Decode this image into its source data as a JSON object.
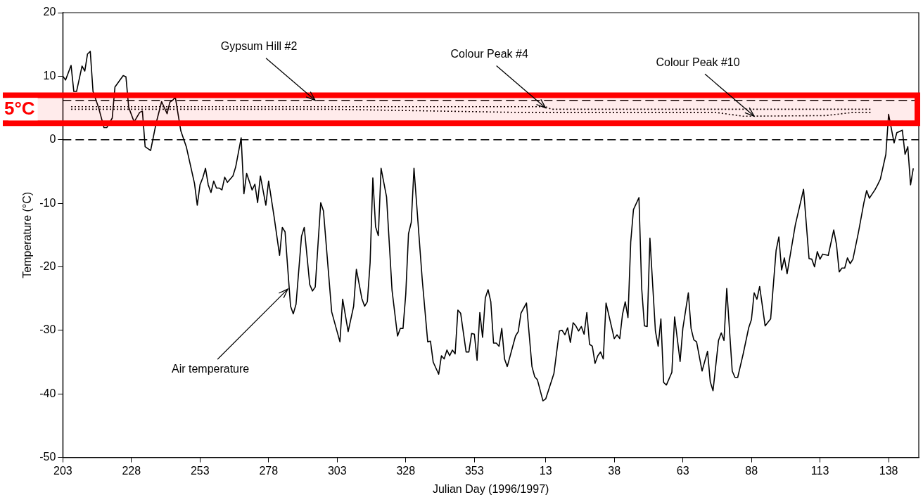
{
  "chart_data": {
    "type": "line",
    "xlabel": "Julian Day (1996/1997)",
    "ylabel": "Temperature (°C)",
    "xlim": [
      "1996-07-21",
      "1997-05-29"
    ],
    "xticks": [
      {
        "value": "1996-07-21",
        "label": "203"
      },
      {
        "value": "1996-08-15",
        "label": "228"
      },
      {
        "value": "1996-09-09",
        "label": "253"
      },
      {
        "value": "1996-10-04",
        "label": "278"
      },
      {
        "value": "1996-10-29",
        "label": "303"
      },
      {
        "value": "1996-11-23",
        "label": "328"
      },
      {
        "value": "1996-12-18",
        "label": "353"
      },
      {
        "value": "1997-01-13",
        "label": "13"
      },
      {
        "value": "1997-02-07",
        "label": "38"
      },
      {
        "value": "1997-03-04",
        "label": "63"
      },
      {
        "value": "1997-03-29",
        "label": "88"
      },
      {
        "value": "1997-04-23",
        "label": "113"
      },
      {
        "value": "1997-05-18",
        "label": "138"
      }
    ],
    "ylim": [
      -50,
      20
    ],
    "yticks": [
      -50,
      -40,
      -30,
      -20,
      -10,
      0,
      10,
      20
    ],
    "grid": false,
    "legend": false,
    "marker": "none",
    "series": [
      {
        "color": "#000000",
        "line_style": "solid",
        "x": [
          "1996-07-21",
          "1996-07-22",
          "1996-07-24",
          "1996-07-25",
          "1996-07-26",
          "1996-07-28",
          "1996-07-29",
          "1996-07-30",
          "1996-07-31",
          "1996-08-01",
          "1996-08-03",
          "1996-08-05",
          "1996-08-06",
          "1996-08-08",
          "1996-08-09",
          "1996-08-12",
          "1996-08-13",
          "1996-08-14",
          "1996-08-16",
          "1996-08-18",
          "1996-08-19",
          "1996-08-20",
          "1996-08-22",
          "1996-08-24",
          "1996-08-26",
          "1996-08-28",
          "1996-08-29",
          "1996-08-30",
          "1996-08-31",
          "1996-09-02",
          "1996-09-04",
          "1996-09-07",
          "1996-09-08",
          "1996-09-09",
          "1996-09-10",
          "1996-09-11",
          "1996-09-12",
          "1996-09-13",
          "1996-09-14",
          "1996-09-15",
          "1996-09-16",
          "1996-09-17",
          "1996-09-18",
          "1996-09-19",
          "1996-09-21",
          "1996-09-22",
          "1996-09-24",
          "1996-09-25",
          "1996-09-26",
          "1996-09-28",
          "1996-09-29",
          "1996-09-30",
          "1996-10-01",
          "1996-10-03",
          "1996-10-04",
          "1996-10-06",
          "1996-10-08",
          "1996-10-09",
          "1996-10-10",
          "1996-10-12",
          "1996-10-13",
          "1996-10-14",
          "1996-10-16",
          "1996-10-17",
          "1996-10-19",
          "1996-10-20",
          "1996-10-21",
          "1996-10-23",
          "1996-10-24",
          "1996-10-27",
          "1996-10-30",
          "1996-10-31",
          "1996-11-02",
          "1996-11-04",
          "1996-11-05",
          "1996-11-07",
          "1996-11-08",
          "1996-11-09",
          "1996-11-10",
          "1996-11-11",
          "1996-11-12",
          "1996-11-13",
          "1996-11-14",
          "1996-11-16",
          "1996-11-18",
          "1996-11-20",
          "1996-11-21",
          "1996-11-22",
          "1996-11-23",
          "1996-11-24",
          "1996-11-25",
          "1996-11-26",
          "1996-11-29",
          "1996-12-01",
          "1996-12-02",
          "1996-12-03",
          "1996-12-05",
          "1996-12-06",
          "1996-12-07",
          "1996-12-08",
          "1996-12-09",
          "1996-12-10",
          "1996-12-11",
          "1996-12-12",
          "1996-12-13",
          "1996-12-15",
          "1996-12-16",
          "1996-12-17",
          "1996-12-18",
          "1996-12-19",
          "1996-12-20",
          "1996-12-21",
          "1996-12-22",
          "1996-12-23",
          "1996-12-24",
          "1996-12-25",
          "1996-12-26",
          "1996-12-27",
          "1996-12-28",
          "1996-12-29",
          "1996-12-30",
          "1997-01-02",
          "1997-01-03",
          "1997-01-04",
          "1997-01-06",
          "1997-01-08",
          "1997-01-09",
          "1997-01-10",
          "1997-01-12",
          "1997-01-13",
          "1997-01-16",
          "1997-01-18",
          "1997-01-19",
          "1997-01-20",
          "1997-01-21",
          "1997-01-22",
          "1997-01-23",
          "1997-01-24",
          "1997-01-25",
          "1997-01-26",
          "1997-01-27",
          "1997-01-28",
          "1997-01-29",
          "1997-01-30",
          "1997-01-31",
          "1997-02-01",
          "1997-02-02",
          "1997-02-03",
          "1997-02-04",
          "1997-02-07",
          "1997-02-08",
          "1997-02-09",
          "1997-02-10",
          "1997-02-11",
          "1997-02-12",
          "1997-02-13",
          "1997-02-14",
          "1997-02-16",
          "1997-02-17",
          "1997-02-18",
          "1997-02-19",
          "1997-02-20",
          "1997-02-22",
          "1997-02-23",
          "1997-02-24",
          "1997-02-25",
          "1997-02-26",
          "1997-02-28",
          "1997-03-01",
          "1997-03-03",
          "1997-03-04",
          "1997-03-06",
          "1997-03-07",
          "1997-03-08",
          "1997-03-09",
          "1997-03-11",
          "1997-03-13",
          "1997-03-14",
          "1997-03-15",
          "1997-03-17",
          "1997-03-18",
          "1997-03-19",
          "1997-03-20",
          "1997-03-22",
          "1997-03-23",
          "1997-03-24",
          "1997-03-26",
          "1997-03-28",
          "1997-03-29",
          "1997-03-30",
          "1997-03-31",
          "1997-04-01",
          "1997-04-03",
          "1997-04-05",
          "1997-04-07",
          "1997-04-08",
          "1997-04-09",
          "1997-04-10",
          "1997-04-11",
          "1997-04-14",
          "1997-04-17",
          "1997-04-19",
          "1997-04-20",
          "1997-04-21",
          "1997-04-22",
          "1997-04-23",
          "1997-04-24",
          "1997-04-26",
          "1997-04-28",
          "1997-04-29",
          "1997-04-30",
          "1997-05-01",
          "1997-05-02",
          "1997-05-03",
          "1997-05-04",
          "1997-05-05",
          "1997-05-07",
          "1997-05-09",
          "1997-05-10",
          "1997-05-11",
          "1997-05-13",
          "1997-05-14",
          "1997-05-15",
          "1997-05-17",
          "1997-05-18",
          "1997-05-20",
          "1997-05-21",
          "1997-05-23",
          "1997-05-24",
          "1997-05-25",
          "1997-05-26",
          "1997-05-27"
        ],
        "values": [
          10.0,
          9.4,
          11.7,
          7.6,
          7.6,
          11.6,
          10.8,
          13.5,
          13.9,
          7.6,
          5.1,
          1.9,
          1.9,
          3.4,
          8.3,
          10.1,
          9.9,
          5.1,
          2.8,
          4.3,
          4.5,
          -1.1,
          -1.7,
          2.6,
          6.0,
          4.1,
          5.9,
          6.2,
          6.7,
          1.4,
          -1.1,
          -6.9,
          -10.3,
          -7.1,
          -6.0,
          -4.5,
          -7.1,
          -8.3,
          -6.5,
          -7.6,
          -7.6,
          -7.9,
          -5.9,
          -6.7,
          -5.7,
          -4.3,
          0.3,
          -8.5,
          -5.3,
          -7.9,
          -7.0,
          -9.9,
          -5.7,
          -10.3,
          -6.5,
          -12.1,
          -18.2,
          -13.8,
          -14.5,
          -26.2,
          -27.4,
          -25.9,
          -15.2,
          -13.8,
          -22.8,
          -23.8,
          -23.2,
          -9.9,
          -11.2,
          -27.1,
          -31.8,
          -25.1,
          -30.2,
          -26.2,
          -20.4,
          -25.0,
          -26.2,
          -25.5,
          -19.4,
          -6.0,
          -13.7,
          -15.1,
          -4.5,
          -9.0,
          -23.7,
          -30.9,
          -29.7,
          -29.7,
          -24.3,
          -14.8,
          -13.0,
          -4.5,
          -22.0,
          -31.8,
          -31.7,
          -35.0,
          -36.9,
          -34.0,
          -34.5,
          -33.1,
          -34.0,
          -33.1,
          -33.7,
          -26.8,
          -27.3,
          -33.4,
          -33.4,
          -30.5,
          -30.6,
          -34.7,
          -27.2,
          -31.1,
          -24.9,
          -23.6,
          -25.5,
          -32.0,
          -32.0,
          -32.5,
          -29.7,
          -34.5,
          -35.7,
          -30.9,
          -30.2,
          -27.3,
          -25.7,
          -35.7,
          -37.3,
          -37.8,
          -41.1,
          -40.8,
          -36.8,
          -30.1,
          -30.0,
          -30.7,
          -29.6,
          -31.9,
          -28.8,
          -29.3,
          -30.1,
          -29.4,
          -30.6,
          -27.2,
          -32.2,
          -32.5,
          -35.2,
          -34.0,
          -33.4,
          -34.5,
          -25.7,
          -31.3,
          -30.7,
          -31.3,
          -27.5,
          -25.5,
          -28.0,
          -16.1,
          -11.0,
          -9.1,
          -23.4,
          -29.3,
          -29.4,
          -15.5,
          -30.1,
          -32.5,
          -28.2,
          -38.2,
          -38.6,
          -36.6,
          -27.9,
          -34.9,
          -29.7,
          -24.1,
          -29.7,
          -31.5,
          -31.8,
          -36.4,
          -33.3,
          -38.1,
          -39.5,
          -31.6,
          -30.4,
          -31.6,
          -23.4,
          -36.4,
          -37.4,
          -37.4,
          -33.7,
          -29.6,
          -28.3,
          -24.1,
          -25.1,
          -23.1,
          -29.3,
          -28.2,
          -17.4,
          -15.3,
          -20.5,
          -18.6,
          -21.1,
          -13.4,
          -7.8,
          -18.7,
          -18.8,
          -20.0,
          -17.6,
          -18.8,
          -18.0,
          -18.2,
          -14.2,
          -16.5,
          -20.8,
          -20.2,
          -20.2,
          -18.6,
          -19.5,
          -18.8,
          -14.6,
          -9.9,
          -8.0,
          -9.2,
          -7.9,
          -7.1,
          -6.2,
          -2.3,
          4.0,
          -0.5,
          1.1,
          1.5,
          -2.3,
          -1.1,
          -7.1,
          -4.5
        ]
      },
      {
        "color": "#000000",
        "line_style": "dashed",
        "x": [
          "1996-07-21",
          "1997-05-29"
        ],
        "values": [
          6.2,
          6.2
        ]
      },
      {
        "color": "#000000",
        "line_style": "dotted",
        "x": [
          "1996-07-24",
          "1997-01-13",
          "1997-01-15",
          "1997-05-12"
        ],
        "values": [
          5.2,
          5.2,
          4.8,
          4.8
        ]
      },
      {
        "color": "#000000",
        "line_style": "dotted",
        "x": [
          "1996-07-24",
          "1996-10-26",
          "1997-01-03",
          "1997-03-16",
          "1997-03-26",
          "1997-04-25",
          "1997-05-05",
          "1997-05-12"
        ],
        "values": [
          4.8,
          4.8,
          4.3,
          4.3,
          3.7,
          3.8,
          4.3,
          4.3
        ]
      }
    ],
    "ref_lines": [
      {
        "axis": "y",
        "value": 0,
        "line_style": "dashed",
        "color": "#000000"
      }
    ],
    "bands": [
      {
        "axis": "y",
        "from": 2.6,
        "to": 7.0,
        "label": "5°C",
        "color": "#ff0000"
      }
    ],
    "annotations": [
      {
        "text": "Air temperature",
        "x": "1996-10-11",
        "y": -23.5
      },
      {
        "text": "Gypsum Hill #2",
        "x": "1996-10-21",
        "y": 6.2
      },
      {
        "text": "Colour Peak #4",
        "x": "1997-01-13",
        "y": 5.0
      },
      {
        "text": "Colour Peak #10",
        "x": "1997-03-30",
        "y": 3.7
      }
    ]
  }
}
